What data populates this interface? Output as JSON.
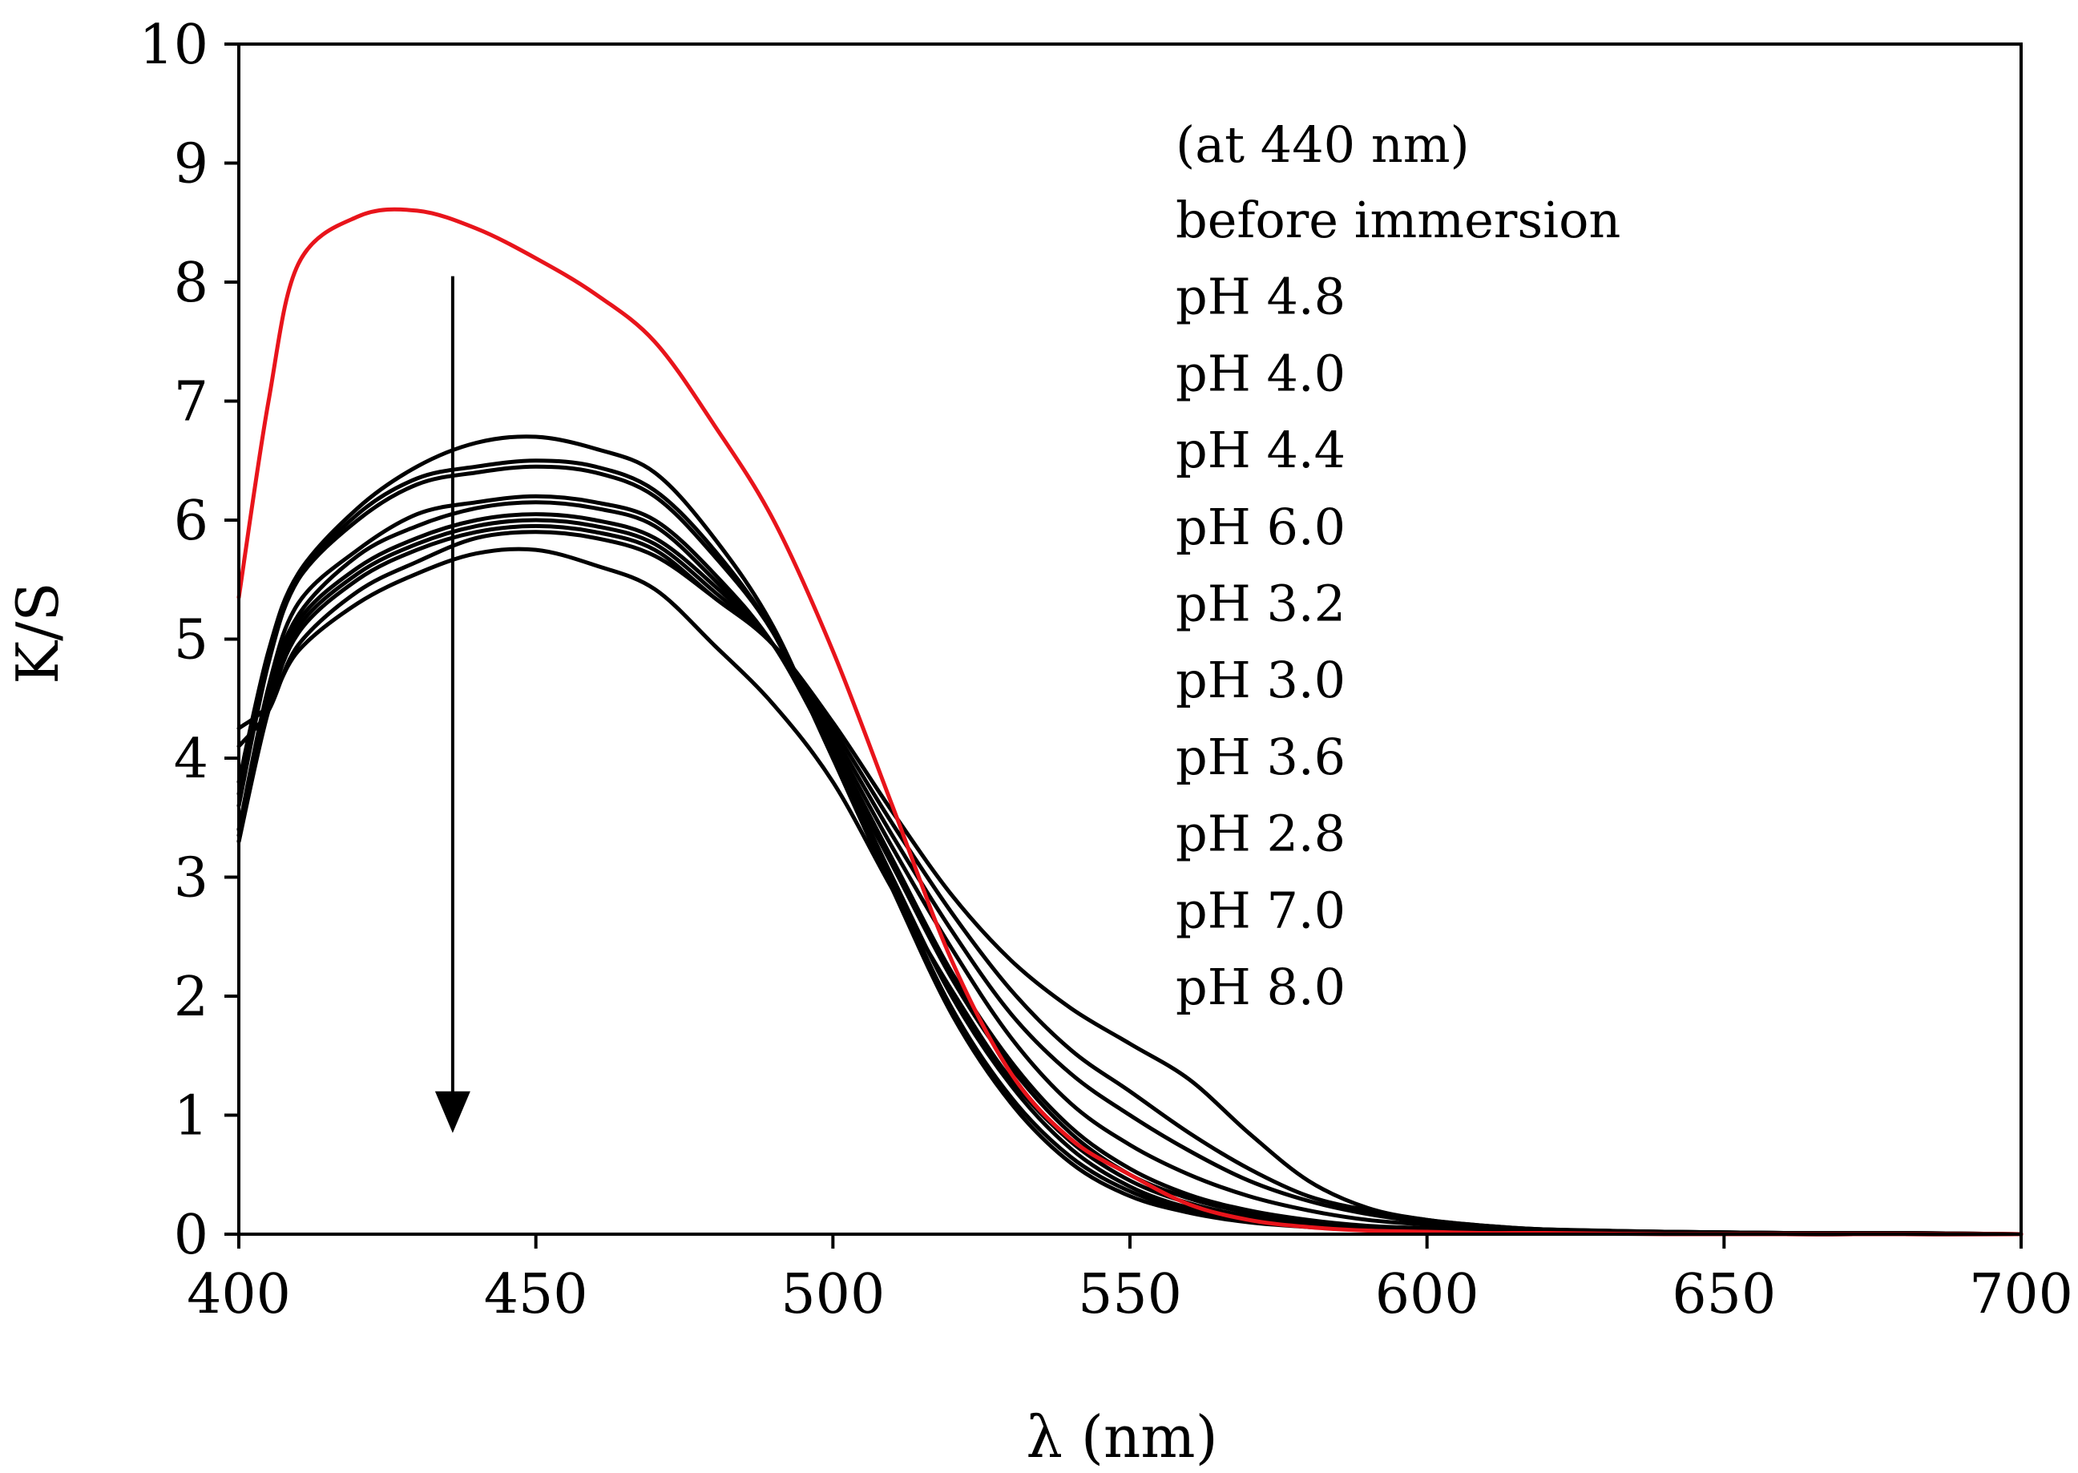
{
  "chart_data": {
    "type": "line",
    "title": "",
    "xlabel": "λ (nm)",
    "ylabel": "K/S",
    "xlim": [
      400,
      700
    ],
    "ylim": [
      0,
      10
    ],
    "x_ticks": [
      400,
      450,
      500,
      550,
      600,
      650,
      700
    ],
    "y_ticks": [
      0,
      1,
      2,
      3,
      4,
      5,
      6,
      7,
      8,
      9,
      10
    ],
    "grid": false,
    "legend_position": "top-right",
    "legend_header": "(at 440 nm)",
    "x": [
      400,
      405,
      410,
      420,
      430,
      440,
      450,
      460,
      470,
      480,
      490,
      500,
      510,
      520,
      530,
      540,
      550,
      560,
      570,
      580,
      590,
      600,
      610,
      620,
      640,
      660,
      680,
      700
    ],
    "series": [
      {
        "name": "before immersion",
        "color": "#e8141b",
        "values": [
          5.35,
          7.0,
          8.15,
          8.55,
          8.6,
          8.45,
          8.2,
          7.9,
          7.5,
          6.8,
          6.0,
          4.9,
          3.6,
          2.3,
          1.35,
          0.8,
          0.5,
          0.25,
          0.12,
          0.06,
          0.03,
          0.02,
          0.01,
          0.01,
          0.0,
          0.0,
          0.0,
          0.0
        ]
      },
      {
        "name": "pH 4.8",
        "color": "#000000",
        "values": [
          3.8,
          4.9,
          5.55,
          6.1,
          6.45,
          6.65,
          6.7,
          6.6,
          6.4,
          5.85,
          5.1,
          4.0,
          2.9,
          1.85,
          1.1,
          0.6,
          0.32,
          0.18,
          0.1,
          0.06,
          0.04,
          0.03,
          0.02,
          0.01,
          0.01,
          0.0,
          0.0,
          0.0
        ]
      },
      {
        "name": "pH 4.0",
        "color": "#000000",
        "values": [
          3.6,
          4.8,
          5.5,
          6.05,
          6.35,
          6.45,
          6.5,
          6.45,
          6.25,
          5.75,
          5.05,
          4.0,
          2.95,
          1.9,
          1.15,
          0.65,
          0.36,
          0.2,
          0.12,
          0.07,
          0.04,
          0.03,
          0.02,
          0.01,
          0.01,
          0.0,
          0.0,
          0.0
        ]
      },
      {
        "name": "pH 4.4",
        "color": "#000000",
        "values": [
          3.7,
          4.85,
          5.5,
          6.0,
          6.3,
          6.4,
          6.45,
          6.4,
          6.2,
          5.7,
          5.05,
          4.05,
          3.0,
          2.0,
          1.25,
          0.72,
          0.4,
          0.22,
          0.13,
          0.08,
          0.05,
          0.03,
          0.02,
          0.01,
          0.01,
          0.0,
          0.0,
          0.0
        ]
      },
      {
        "name": "pH 6.0",
        "color": "#000000",
        "values": [
          3.4,
          4.6,
          5.3,
          5.75,
          6.05,
          6.15,
          6.2,
          6.15,
          6.0,
          5.55,
          4.95,
          4.05,
          3.1,
          2.15,
          1.4,
          0.85,
          0.5,
          0.3,
          0.18,
          0.1,
          0.06,
          0.04,
          0.03,
          0.02,
          0.01,
          0.01,
          0.0,
          0.0
        ]
      },
      {
        "name": "pH 3.2",
        "color": "#000000",
        "values": [
          3.4,
          4.55,
          5.2,
          5.7,
          5.95,
          6.1,
          6.15,
          6.1,
          5.95,
          5.5,
          4.95,
          4.1,
          3.15,
          2.2,
          1.45,
          0.9,
          0.55,
          0.33,
          0.2,
          0.12,
          0.07,
          0.05,
          0.03,
          0.02,
          0.01,
          0.01,
          0.0,
          0.0
        ]
      },
      {
        "name": "pH 3.0",
        "color": "#000000",
        "values": [
          3.35,
          4.5,
          5.15,
          5.6,
          5.85,
          6.0,
          6.05,
          6.0,
          5.85,
          5.45,
          4.95,
          4.15,
          3.25,
          2.4,
          1.65,
          1.1,
          0.75,
          0.5,
          0.32,
          0.2,
          0.12,
          0.08,
          0.05,
          0.03,
          0.02,
          0.01,
          0.0,
          0.0
        ]
      },
      {
        "name": "pH 3.6",
        "color": "#000000",
        "values": [
          3.3,
          4.45,
          5.1,
          5.55,
          5.8,
          5.95,
          6.0,
          5.95,
          5.8,
          5.4,
          4.95,
          4.2,
          3.35,
          2.55,
          1.85,
          1.35,
          1.0,
          0.7,
          0.45,
          0.28,
          0.17,
          0.1,
          0.06,
          0.04,
          0.02,
          0.01,
          0.01,
          0.0
        ]
      },
      {
        "name": "pH 2.8",
        "color": "#000000",
        "values": [
          3.3,
          4.4,
          5.05,
          5.5,
          5.75,
          5.9,
          5.95,
          5.9,
          5.75,
          5.35,
          4.95,
          4.25,
          3.45,
          2.7,
          2.05,
          1.55,
          1.2,
          0.85,
          0.55,
          0.32,
          0.2,
          0.12,
          0.07,
          0.04,
          0.02,
          0.01,
          0.01,
          0.0
        ]
      },
      {
        "name": "pH 7.0",
        "color": "#000000",
        "values": [
          4.1,
          4.4,
          4.95,
          5.4,
          5.65,
          5.85,
          5.9,
          5.85,
          5.7,
          5.35,
          4.95,
          4.3,
          3.55,
          2.85,
          2.3,
          1.9,
          1.6,
          1.3,
          0.85,
          0.45,
          0.22,
          0.12,
          0.07,
          0.04,
          0.02,
          0.01,
          0.01,
          0.0
        ]
      },
      {
        "name": "pH 8.0",
        "color": "#000000",
        "values": [
          4.25,
          4.45,
          4.9,
          5.3,
          5.55,
          5.72,
          5.75,
          5.62,
          5.42,
          4.95,
          4.45,
          3.8,
          2.9,
          2.05,
          1.3,
          0.78,
          0.45,
          0.26,
          0.15,
          0.09,
          0.05,
          0.03,
          0.02,
          0.01,
          0.01,
          0.0,
          0.0,
          0.0
        ]
      }
    ],
    "annotations": [
      {
        "type": "arrow",
        "direction": "down",
        "x": 436,
        "y_from": 8.05,
        "y_to": 0.85
      }
    ]
  }
}
